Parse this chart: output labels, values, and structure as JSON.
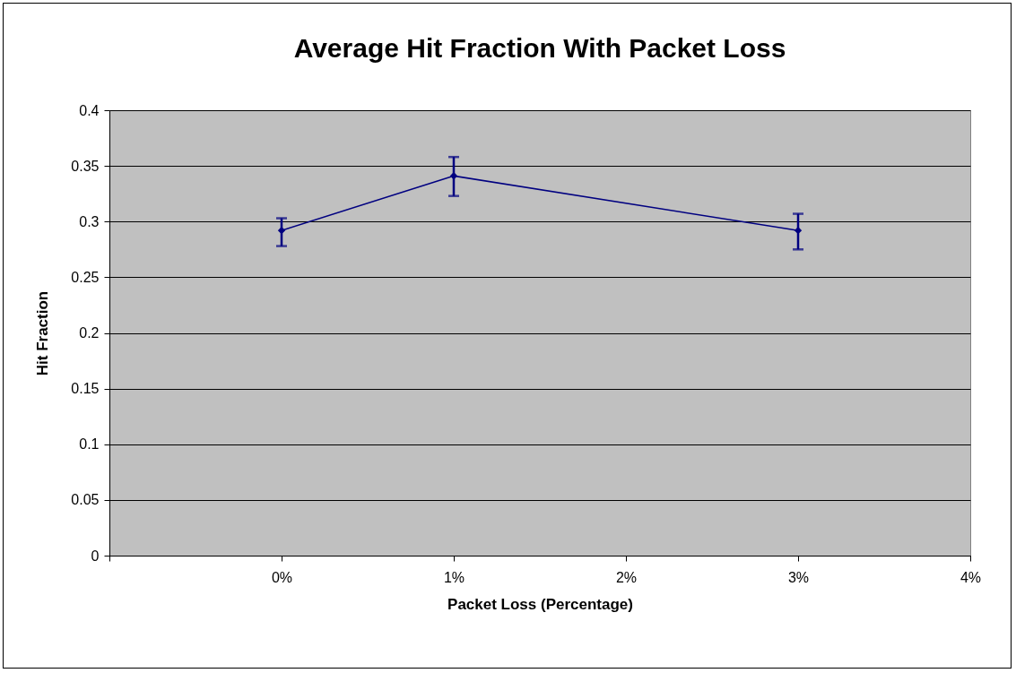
{
  "chart_data": {
    "type": "line",
    "title": "Average Hit Fraction With Packet Loss",
    "xlabel": "Packet Loss (Percentage)",
    "ylabel": "Hit Fraction",
    "x": [
      0,
      1,
      3
    ],
    "series": [
      {
        "color": "#000080",
        "values": [
          0.292,
          0.341,
          0.292
        ],
        "errors": [
          [
            0.278,
            0.303
          ],
          [
            0.323,
            0.358
          ],
          [
            0.275,
            0.307
          ]
        ]
      }
    ],
    "xlim": [
      -1,
      4
    ],
    "xticks": [
      {
        "value": -1,
        "label": null
      },
      {
        "value": 0,
        "label": "0%"
      },
      {
        "value": 1,
        "label": "1%"
      },
      {
        "value": 2,
        "label": "2%"
      },
      {
        "value": 3,
        "label": "3%"
      },
      {
        "value": 4,
        "label": "4%"
      }
    ],
    "ylim": [
      0,
      0.4
    ],
    "yticks": [
      0,
      0.05,
      0.1,
      0.15,
      0.2,
      0.25,
      0.3,
      0.35,
      0.4
    ],
    "grid": "y",
    "marker": "diamond",
    "line_style": "solid"
  }
}
